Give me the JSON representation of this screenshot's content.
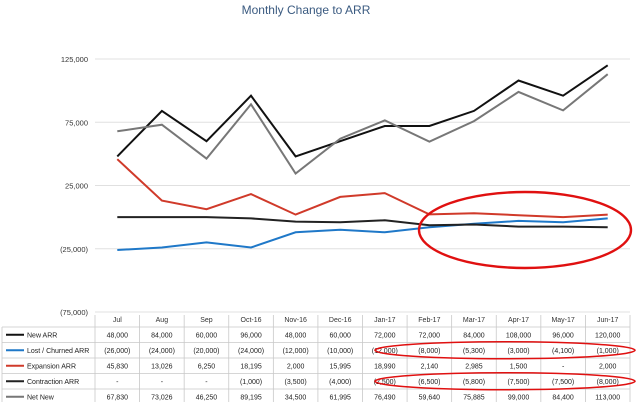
{
  "chart_data": {
    "type": "line",
    "title": "Monthly Change to ARR",
    "categories": [
      "Jul",
      "Aug",
      "Sep",
      "Oct-16",
      "Nov-16",
      "Dec-16",
      "Jan-17",
      "Feb-17",
      "Mar-17",
      "Apr-17",
      "May-17",
      "Jun-17"
    ],
    "y_ticks": [
      "125,000",
      "75,000",
      "25,000",
      "(25,000)",
      "(75,000)"
    ],
    "ylim": [
      -75000,
      125000
    ],
    "grid": true,
    "legend": "data-table",
    "series": [
      {
        "name": "New ARR",
        "color": "#111111",
        "values": [
          48000,
          84000,
          60000,
          96000,
          48000,
          60000,
          72000,
          72000,
          84000,
          108000,
          96000,
          120000
        ],
        "labels": [
          "48,000",
          "84,000",
          "60,000",
          "96,000",
          "48,000",
          "60,000",
          "72,000",
          "72,000",
          "84,000",
          "108,000",
          "96,000",
          "120,000"
        ]
      },
      {
        "name": "Lost / Churned ARR",
        "color": "#1f78c8",
        "values": [
          -26000,
          -24000,
          -20000,
          -24000,
          -12000,
          -10000,
          -12000,
          -8000,
          -5300,
          -3000,
          -4100,
          -1000
        ],
        "labels": [
          "(26,000)",
          "(24,000)",
          "(20,000)",
          "(24,000)",
          "(12,000)",
          "(10,000)",
          "(12,000)",
          "(8,000)",
          "(5,300)",
          "(3,000)",
          "(4,100)",
          "(1,000)"
        ]
      },
      {
        "name": "Expansion ARR",
        "color": "#d03a2a",
        "values": [
          45830,
          13026,
          6250,
          18195,
          2000,
          15995,
          18990,
          2140,
          2985,
          1500,
          0,
          2000
        ],
        "labels": [
          "45,830",
          "13,026",
          "6,250",
          "18,195",
          "2,000",
          "15,995",
          "18,990",
          "2,140",
          "2,985",
          "1,500",
          "-",
          "2,000"
        ]
      },
      {
        "name": "Contraction ARR",
        "color": "#222222",
        "values": [
          0,
          0,
          0,
          -1000,
          -3500,
          -4000,
          -2500,
          -6500,
          -5800,
          -7500,
          -7500,
          -8000
        ],
        "labels": [
          "-",
          "-",
          "-",
          "(1,000)",
          "(3,500)",
          "(4,000)",
          "(2,500)",
          "(6,500)",
          "(5,800)",
          "(7,500)",
          "(7,500)",
          "(8,000)"
        ]
      },
      {
        "name": "Net New",
        "color": "#777777",
        "values": [
          67830,
          73026,
          46250,
          89195,
          34500,
          61995,
          76490,
          59640,
          75885,
          99000,
          84400,
          113000
        ],
        "labels": [
          "67,830",
          "73,026",
          "46,250",
          "89,195",
          "34,500",
          "61,995",
          "76,490",
          "59,640",
          "75,885",
          "99,000",
          "84,400",
          "113,000"
        ]
      }
    ]
  },
  "annotations": {
    "highlight_color": "#e01010"
  }
}
